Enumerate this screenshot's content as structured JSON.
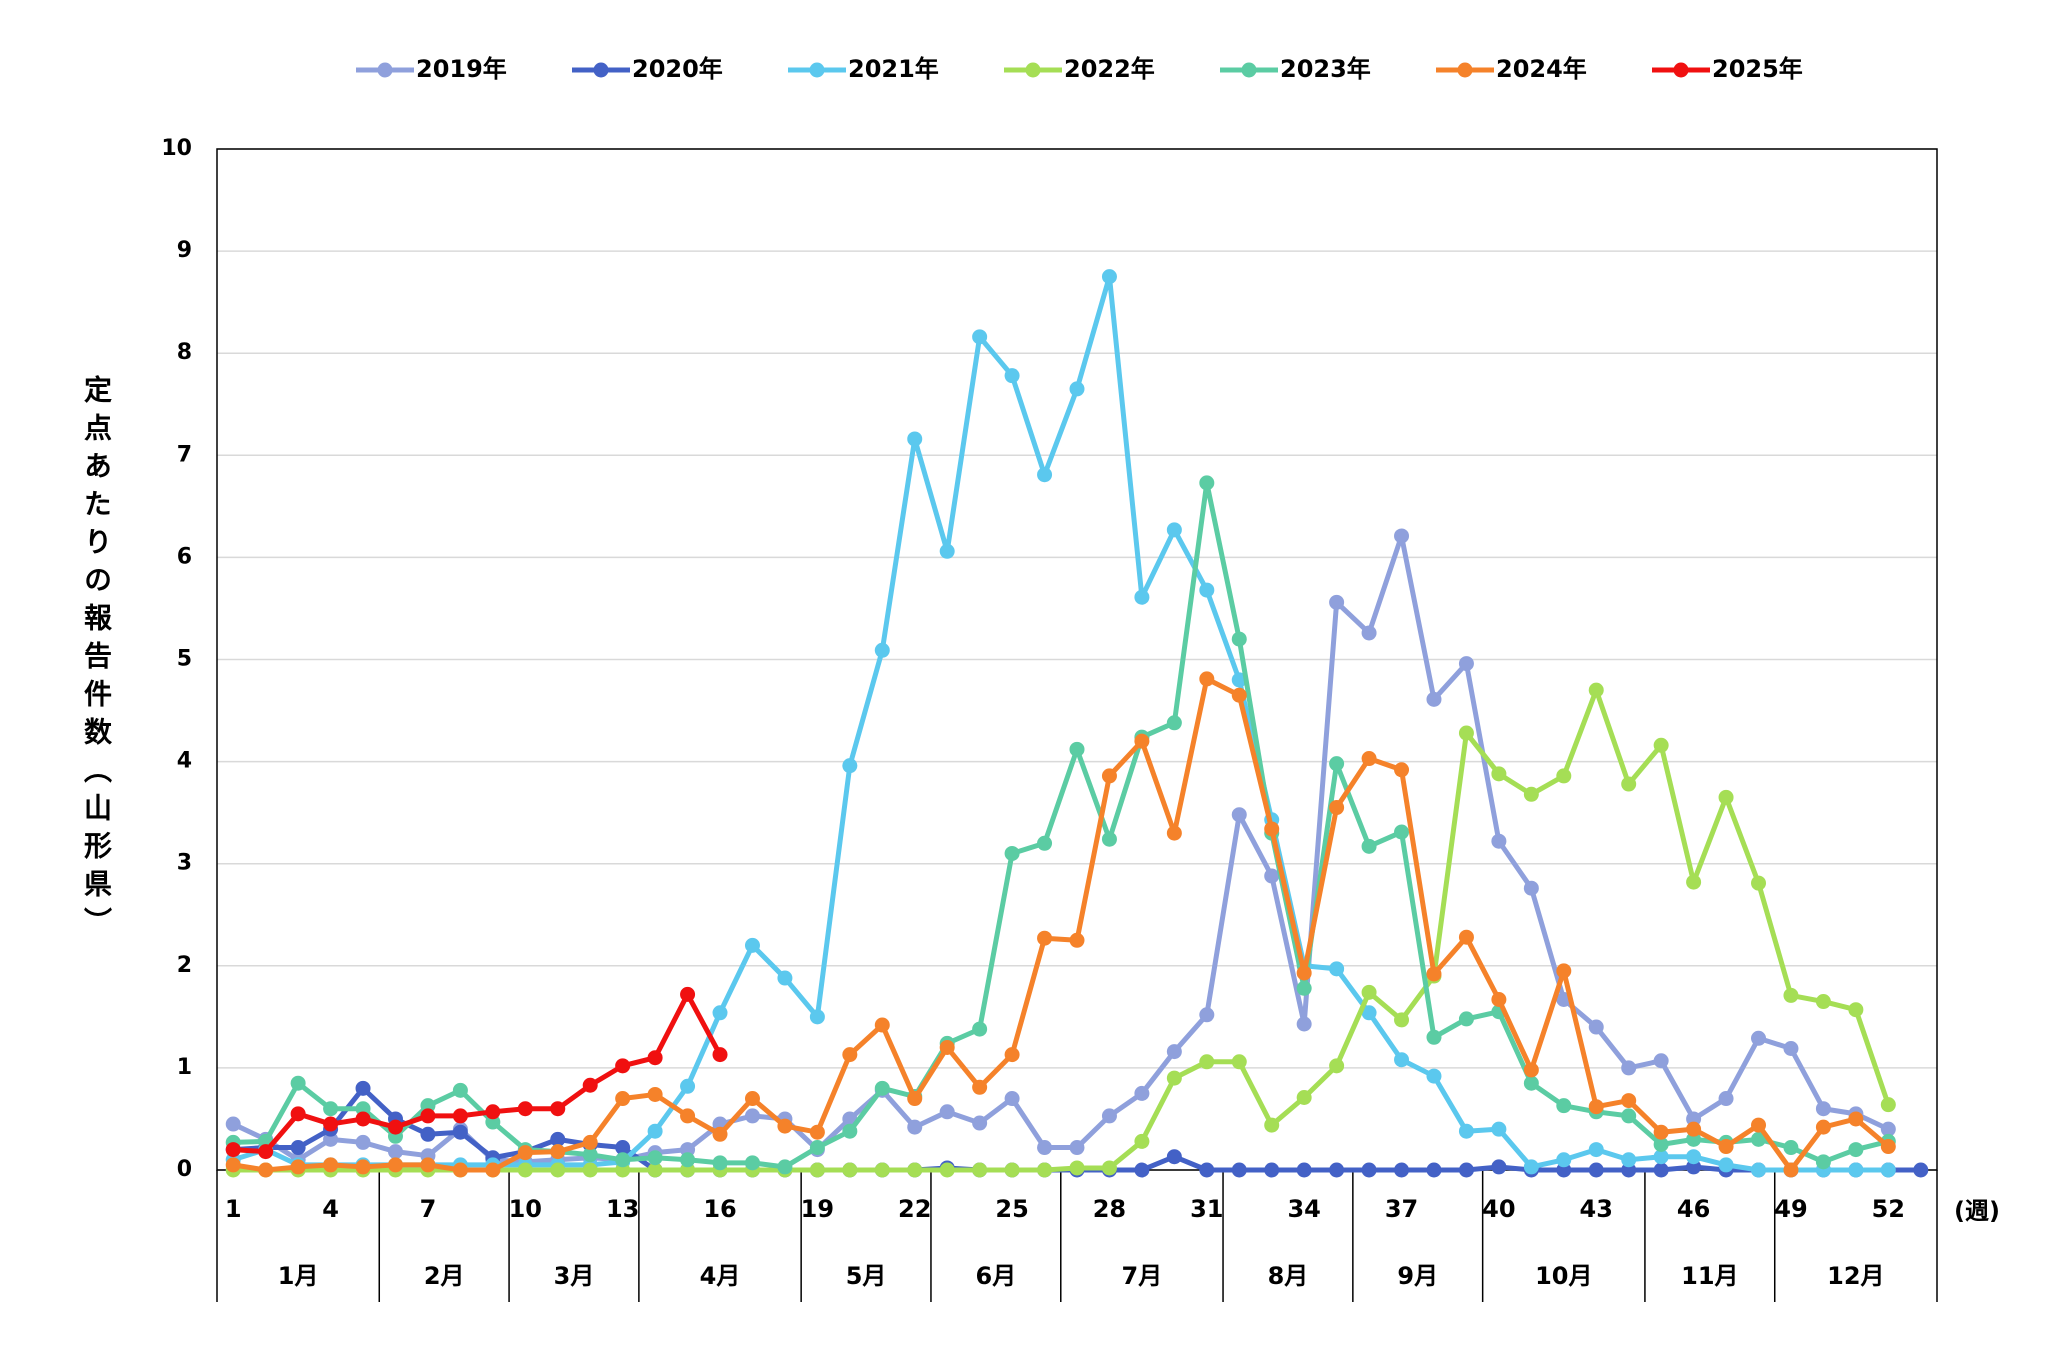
{
  "chart_data": {
    "type": "line",
    "y_label": "定点あたりの報告件数（山形県）",
    "x_unit": "(週)",
    "x": [
      1,
      2,
      3,
      4,
      5,
      6,
      7,
      8,
      9,
      10,
      11,
      12,
      13,
      14,
      15,
      16,
      17,
      18,
      19,
      20,
      21,
      22,
      23,
      24,
      25,
      26,
      27,
      28,
      29,
      30,
      31,
      32,
      33,
      34,
      35,
      36,
      37,
      38,
      39,
      40,
      41,
      42,
      43,
      44,
      45,
      46,
      47,
      48,
      49,
      50,
      51,
      52,
      53
    ],
    "xlim": [
      0.5,
      53.5
    ],
    "xticks": [
      1,
      4,
      7,
      10,
      13,
      16,
      19,
      22,
      25,
      28,
      31,
      34,
      37,
      40,
      43,
      46,
      49,
      52
    ],
    "ylim": [
      0,
      10
    ],
    "yticks": [
      0,
      1,
      2,
      3,
      4,
      5,
      6,
      7,
      8,
      9,
      10
    ],
    "grid": true,
    "legend": "top",
    "month_groups": [
      {
        "label": "1月",
        "first_week": 1,
        "last_week": 5
      },
      {
        "label": "2月",
        "first_week": 6,
        "last_week": 9
      },
      {
        "label": "3月",
        "first_week": 10,
        "last_week": 13
      },
      {
        "label": "4月",
        "first_week": 14,
        "last_week": 18
      },
      {
        "label": "5月",
        "first_week": 19,
        "last_week": 22
      },
      {
        "label": "6月",
        "first_week": 23,
        "last_week": 26
      },
      {
        "label": "7月",
        "first_week": 27,
        "last_week": 31
      },
      {
        "label": "8月",
        "first_week": 32,
        "last_week": 35
      },
      {
        "label": "9月",
        "first_week": 36,
        "last_week": 39
      },
      {
        "label": "10月",
        "first_week": 40,
        "last_week": 44
      },
      {
        "label": "11月",
        "first_week": 45,
        "last_week": 48
      },
      {
        "label": "12月",
        "first_week": 49,
        "last_week": 53
      }
    ],
    "series": [
      {
        "name": "2019年",
        "color": "#8fa0dc",
        "values": [
          0.45,
          0.3,
          0.1,
          0.3,
          0.27,
          0.18,
          0.14,
          0.4,
          0.1,
          0.08,
          0.1,
          0.12,
          0.1,
          0.17,
          0.2,
          0.45,
          0.53,
          0.5,
          0.2,
          0.5,
          0.78,
          0.42,
          0.57,
          0.46,
          0.7,
          0.22,
          0.22,
          0.53,
          0.75,
          1.16,
          1.52,
          3.48,
          2.88,
          1.43,
          5.56,
          5.26,
          6.21,
          4.61,
          4.96,
          3.22,
          2.76,
          1.67,
          1.4,
          1.0,
          1.07,
          0.5,
          0.7,
          1.29,
          1.19,
          0.6,
          0.55,
          0.4,
          null
        ]
      },
      {
        "name": "2020年",
        "color": "#4361c6",
        "values": [
          0.2,
          0.22,
          0.22,
          0.4,
          0.8,
          0.5,
          0.35,
          0.37,
          0.12,
          0.18,
          0.3,
          0.25,
          0.22,
          0,
          0,
          0,
          0,
          0,
          0,
          0,
          0,
          0,
          0.02,
          0,
          0,
          0,
          0,
          0,
          0,
          0.13,
          0,
          0,
          0,
          0,
          0,
          0,
          0,
          0,
          0,
          0.03,
          0,
          0,
          0,
          0,
          0,
          0.03,
          0,
          0,
          0,
          0,
          0,
          0,
          0
        ]
      },
      {
        "name": "2021年",
        "color": "#5bc8ee",
        "values": [
          0.1,
          0.2,
          0.05,
          0.05,
          0.05,
          0.05,
          0.05,
          0.05,
          0.05,
          0.05,
          0.05,
          0.05,
          0.08,
          0.38,
          0.82,
          1.54,
          2.2,
          1.88,
          1.5,
          3.96,
          5.09,
          7.16,
          6.06,
          8.16,
          7.78,
          6.81,
          7.65,
          8.75,
          5.61,
          6.27,
          5.68,
          4.8,
          3.43,
          2.0,
          1.97,
          1.54,
          1.08,
          0.92,
          0.38,
          0.4,
          0.03,
          0.1,
          0.2,
          0.1,
          0.13,
          0.13,
          0.05,
          0,
          0,
          0,
          0,
          0,
          null
        ]
      },
      {
        "name": "2022年",
        "color": "#a5de55",
        "values": [
          0,
          0,
          0,
          0,
          0,
          0,
          0,
          0,
          0,
          0,
          0,
          0,
          0,
          0,
          0,
          0,
          0,
          0,
          0,
          0,
          0,
          0,
          0,
          0,
          0,
          0,
          0.02,
          0.02,
          0.28,
          0.9,
          1.06,
          1.06,
          0.44,
          0.71,
          1.02,
          1.74,
          1.47,
          1.9,
          4.28,
          3.88,
          3.68,
          3.86,
          4.7,
          3.78,
          4.16,
          2.82,
          3.65,
          2.81,
          1.71,
          1.65,
          1.57,
          0.64,
          null
        ]
      },
      {
        "name": "2023年",
        "color": "#5bcca3",
        "values": [
          0.27,
          0.28,
          0.85,
          0.6,
          0.6,
          0.33,
          0.63,
          0.78,
          0.47,
          0.2,
          0.18,
          0.15,
          0.1,
          0.12,
          0.1,
          0.07,
          0.07,
          0.03,
          0.22,
          0.38,
          0.8,
          0.72,
          1.24,
          1.38,
          3.1,
          3.2,
          4.12,
          3.24,
          4.24,
          4.38,
          6.73,
          5.2,
          3.3,
          1.78,
          3.98,
          3.17,
          3.31,
          1.3,
          1.48,
          1.55,
          0.85,
          0.63,
          0.57,
          0.53,
          0.25,
          0.3,
          0.27,
          0.3,
          0.22,
          0.08,
          0.2,
          0.28,
          null
        ]
      },
      {
        "name": "2024年",
        "color": "#f5822a",
        "values": [
          0.05,
          0,
          0.03,
          0.05,
          0.03,
          0.05,
          0.05,
          0,
          0,
          0.17,
          0.18,
          0.27,
          0.7,
          0.74,
          0.53,
          0.35,
          0.7,
          0.43,
          0.37,
          1.13,
          1.42,
          0.7,
          1.2,
          0.81,
          1.13,
          2.27,
          2.25,
          3.86,
          4.2,
          3.3,
          4.81,
          4.65,
          3.34,
          1.93,
          3.55,
          4.03,
          3.92,
          1.92,
          2.28,
          1.67,
          0.98,
          1.95,
          0.62,
          0.68,
          0.37,
          0.4,
          0.23,
          0.44,
          0,
          0.42,
          0.5,
          0.23,
          null
        ]
      },
      {
        "name": "2025年",
        "color": "#f01010",
        "values": [
          0.2,
          0.18,
          0.55,
          0.45,
          0.5,
          0.42,
          0.53,
          0.53,
          0.57,
          0.6,
          0.6,
          0.83,
          1.02,
          1.1,
          1.72,
          1.13,
          null,
          null,
          null,
          null,
          null,
          null,
          null,
          null,
          null,
          null,
          null,
          null,
          null,
          null,
          null,
          null,
          null,
          null,
          null,
          null,
          null,
          null,
          null,
          null,
          null,
          null,
          null,
          null,
          null,
          null,
          null,
          null,
          null,
          null,
          null,
          null,
          null
        ]
      }
    ]
  }
}
